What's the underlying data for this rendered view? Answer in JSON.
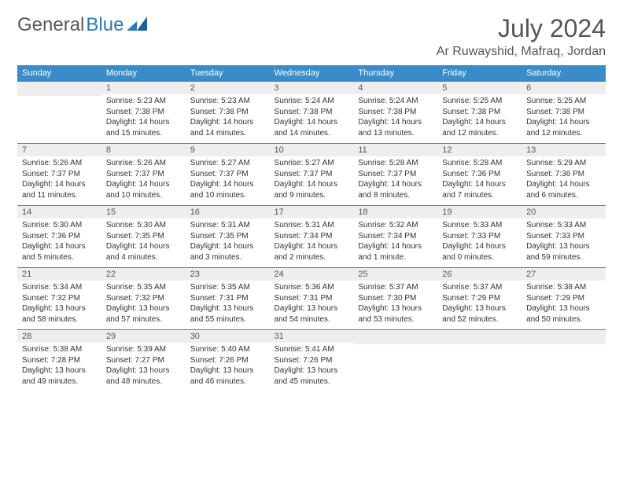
{
  "brand": {
    "part1": "General",
    "part2": "Blue",
    "color_text": "#5a5a5a",
    "color_blue": "#2b7bbf"
  },
  "title": "July 2024",
  "location": "Ar Ruwayshid, Mafraq, Jordan",
  "colors": {
    "header_bg": "#3a8cc9",
    "header_text": "#ffffff",
    "daynum_bg": "#eeeeee",
    "daynum_text": "#555555",
    "body_text": "#333333",
    "title_text": "#555555",
    "rule": "#3a8cc9",
    "page_bg": "#ffffff"
  },
  "typography": {
    "title_fontsize_pt": 24,
    "location_fontsize_pt": 12,
    "header_fontsize_pt": 8,
    "cell_fontsize_pt": 7.5
  },
  "weekdays": [
    "Sunday",
    "Monday",
    "Tuesday",
    "Wednesday",
    "Thursday",
    "Friday",
    "Saturday"
  ],
  "weeks": [
    [
      {
        "day": "",
        "sunrise": "",
        "sunset": "",
        "daylight": ""
      },
      {
        "day": "1",
        "sunrise": "Sunrise: 5:23 AM",
        "sunset": "Sunset: 7:38 PM",
        "daylight": "Daylight: 14 hours and 15 minutes."
      },
      {
        "day": "2",
        "sunrise": "Sunrise: 5:23 AM",
        "sunset": "Sunset: 7:38 PM",
        "daylight": "Daylight: 14 hours and 14 minutes."
      },
      {
        "day": "3",
        "sunrise": "Sunrise: 5:24 AM",
        "sunset": "Sunset: 7:38 PM",
        "daylight": "Daylight: 14 hours and 14 minutes."
      },
      {
        "day": "4",
        "sunrise": "Sunrise: 5:24 AM",
        "sunset": "Sunset: 7:38 PM",
        "daylight": "Daylight: 14 hours and 13 minutes."
      },
      {
        "day": "5",
        "sunrise": "Sunrise: 5:25 AM",
        "sunset": "Sunset: 7:38 PM",
        "daylight": "Daylight: 14 hours and 12 minutes."
      },
      {
        "day": "6",
        "sunrise": "Sunrise: 5:25 AM",
        "sunset": "Sunset: 7:38 PM",
        "daylight": "Daylight: 14 hours and 12 minutes."
      }
    ],
    [
      {
        "day": "7",
        "sunrise": "Sunrise: 5:26 AM",
        "sunset": "Sunset: 7:37 PM",
        "daylight": "Daylight: 14 hours and 11 minutes."
      },
      {
        "day": "8",
        "sunrise": "Sunrise: 5:26 AM",
        "sunset": "Sunset: 7:37 PM",
        "daylight": "Daylight: 14 hours and 10 minutes."
      },
      {
        "day": "9",
        "sunrise": "Sunrise: 5:27 AM",
        "sunset": "Sunset: 7:37 PM",
        "daylight": "Daylight: 14 hours and 10 minutes."
      },
      {
        "day": "10",
        "sunrise": "Sunrise: 5:27 AM",
        "sunset": "Sunset: 7:37 PM",
        "daylight": "Daylight: 14 hours and 9 minutes."
      },
      {
        "day": "11",
        "sunrise": "Sunrise: 5:28 AM",
        "sunset": "Sunset: 7:37 PM",
        "daylight": "Daylight: 14 hours and 8 minutes."
      },
      {
        "day": "12",
        "sunrise": "Sunrise: 5:28 AM",
        "sunset": "Sunset: 7:36 PM",
        "daylight": "Daylight: 14 hours and 7 minutes."
      },
      {
        "day": "13",
        "sunrise": "Sunrise: 5:29 AM",
        "sunset": "Sunset: 7:36 PM",
        "daylight": "Daylight: 14 hours and 6 minutes."
      }
    ],
    [
      {
        "day": "14",
        "sunrise": "Sunrise: 5:30 AM",
        "sunset": "Sunset: 7:36 PM",
        "daylight": "Daylight: 14 hours and 5 minutes."
      },
      {
        "day": "15",
        "sunrise": "Sunrise: 5:30 AM",
        "sunset": "Sunset: 7:35 PM",
        "daylight": "Daylight: 14 hours and 4 minutes."
      },
      {
        "day": "16",
        "sunrise": "Sunrise: 5:31 AM",
        "sunset": "Sunset: 7:35 PM",
        "daylight": "Daylight: 14 hours and 3 minutes."
      },
      {
        "day": "17",
        "sunrise": "Sunrise: 5:31 AM",
        "sunset": "Sunset: 7:34 PM",
        "daylight": "Daylight: 14 hours and 2 minutes."
      },
      {
        "day": "18",
        "sunrise": "Sunrise: 5:32 AM",
        "sunset": "Sunset: 7:34 PM",
        "daylight": "Daylight: 14 hours and 1 minute."
      },
      {
        "day": "19",
        "sunrise": "Sunrise: 5:33 AM",
        "sunset": "Sunset: 7:33 PM",
        "daylight": "Daylight: 14 hours and 0 minutes."
      },
      {
        "day": "20",
        "sunrise": "Sunrise: 5:33 AM",
        "sunset": "Sunset: 7:33 PM",
        "daylight": "Daylight: 13 hours and 59 minutes."
      }
    ],
    [
      {
        "day": "21",
        "sunrise": "Sunrise: 5:34 AM",
        "sunset": "Sunset: 7:32 PM",
        "daylight": "Daylight: 13 hours and 58 minutes."
      },
      {
        "day": "22",
        "sunrise": "Sunrise: 5:35 AM",
        "sunset": "Sunset: 7:32 PM",
        "daylight": "Daylight: 13 hours and 57 minutes."
      },
      {
        "day": "23",
        "sunrise": "Sunrise: 5:35 AM",
        "sunset": "Sunset: 7:31 PM",
        "daylight": "Daylight: 13 hours and 55 minutes."
      },
      {
        "day": "24",
        "sunrise": "Sunrise: 5:36 AM",
        "sunset": "Sunset: 7:31 PM",
        "daylight": "Daylight: 13 hours and 54 minutes."
      },
      {
        "day": "25",
        "sunrise": "Sunrise: 5:37 AM",
        "sunset": "Sunset: 7:30 PM",
        "daylight": "Daylight: 13 hours and 53 minutes."
      },
      {
        "day": "26",
        "sunrise": "Sunrise: 5:37 AM",
        "sunset": "Sunset: 7:29 PM",
        "daylight": "Daylight: 13 hours and 52 minutes."
      },
      {
        "day": "27",
        "sunrise": "Sunrise: 5:38 AM",
        "sunset": "Sunset: 7:29 PM",
        "daylight": "Daylight: 13 hours and 50 minutes."
      }
    ],
    [
      {
        "day": "28",
        "sunrise": "Sunrise: 5:38 AM",
        "sunset": "Sunset: 7:28 PM",
        "daylight": "Daylight: 13 hours and 49 minutes."
      },
      {
        "day": "29",
        "sunrise": "Sunrise: 5:39 AM",
        "sunset": "Sunset: 7:27 PM",
        "daylight": "Daylight: 13 hours and 48 minutes."
      },
      {
        "day": "30",
        "sunrise": "Sunrise: 5:40 AM",
        "sunset": "Sunset: 7:26 PM",
        "daylight": "Daylight: 13 hours and 46 minutes."
      },
      {
        "day": "31",
        "sunrise": "Sunrise: 5:41 AM",
        "sunset": "Sunset: 7:26 PM",
        "daylight": "Daylight: 13 hours and 45 minutes."
      },
      {
        "day": "",
        "sunrise": "",
        "sunset": "",
        "daylight": ""
      },
      {
        "day": "",
        "sunrise": "",
        "sunset": "",
        "daylight": ""
      },
      {
        "day": "",
        "sunrise": "",
        "sunset": "",
        "daylight": ""
      }
    ]
  ]
}
